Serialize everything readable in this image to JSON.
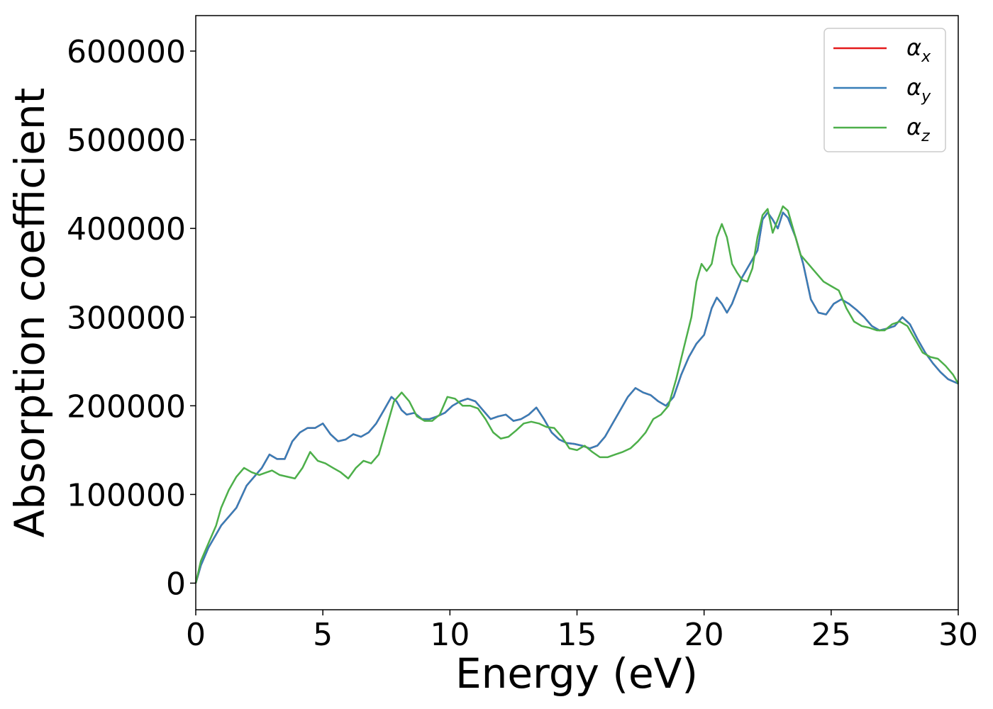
{
  "chart_data": {
    "type": "line",
    "title": "",
    "xlabel": "Energy (eV)",
    "ylabel": "Absorption coefficient",
    "xlim": [
      0,
      30
    ],
    "ylim": [
      -30000,
      640000
    ],
    "xticks": [
      0,
      5,
      10,
      15,
      20,
      25,
      30
    ],
    "yticks": [
      0,
      100000,
      200000,
      300000,
      400000,
      500000,
      600000
    ],
    "grid": false,
    "legend_position": "top-right",
    "series": [
      {
        "name": "α_x",
        "color": "#e41a1c",
        "x": [
          0,
          0.2,
          0.5,
          0.8,
          1.0,
          1.3,
          1.6,
          2.0,
          2.3,
          2.6,
          2.9,
          3.2,
          3.5,
          3.8,
          4.1,
          4.4,
          4.7,
          5.0,
          5.3,
          5.6,
          5.9,
          6.2,
          6.5,
          6.8,
          7.1,
          7.4,
          7.7,
          7.9,
          8.1,
          8.3,
          8.6,
          8.9,
          9.2,
          9.5,
          9.8,
          10.1,
          10.4,
          10.7,
          11.0,
          11.3,
          11.6,
          11.9,
          12.2,
          12.5,
          12.8,
          13.1,
          13.4,
          13.7,
          14.0,
          14.3,
          14.6,
          14.9,
          15.2,
          15.5,
          15.8,
          16.1,
          16.4,
          16.7,
          17.0,
          17.3,
          17.6,
          17.9,
          18.2,
          18.5,
          18.8,
          19.1,
          19.4,
          19.7,
          20.0,
          20.3,
          20.5,
          20.7,
          20.9,
          21.1,
          21.3,
          21.5,
          21.8,
          22.1,
          22.3,
          22.5,
          22.7,
          22.9,
          23.1,
          23.3,
          23.6,
          23.9,
          24.2,
          24.5,
          24.8,
          25.1,
          25.4,
          25.7,
          26.0,
          26.3,
          26.6,
          26.9,
          27.2,
          27.5,
          27.8,
          28.1,
          28.4,
          28.7,
          29.0,
          29.3,
          29.6,
          30.0
        ],
        "y": [
          0,
          20000,
          40000,
          55000,
          65000,
          75000,
          85000,
          110000,
          120000,
          130000,
          145000,
          140000,
          140000,
          160000,
          170000,
          175000,
          175000,
          180000,
          168000,
          160000,
          162000,
          168000,
          165000,
          170000,
          180000,
          195000,
          210000,
          205000,
          195000,
          190000,
          192000,
          185000,
          185000,
          188000,
          192000,
          200000,
          205000,
          208000,
          205000,
          195000,
          185000,
          188000,
          190000,
          183000,
          185000,
          190000,
          198000,
          185000,
          170000,
          162000,
          158000,
          157000,
          155000,
          152000,
          155000,
          165000,
          180000,
          195000,
          210000,
          220000,
          215000,
          212000,
          205000,
          200000,
          210000,
          235000,
          255000,
          270000,
          280000,
          310000,
          322000,
          315000,
          305000,
          315000,
          330000,
          345000,
          360000,
          375000,
          410000,
          418000,
          410000,
          400000,
          418000,
          412000,
          390000,
          360000,
          320000,
          305000,
          303000,
          315000,
          320000,
          315000,
          308000,
          300000,
          290000,
          285000,
          287000,
          290000,
          300000,
          292000,
          275000,
          260000,
          248000,
          238000,
          230000,
          225000
        ]
      },
      {
        "name": "α_y",
        "color": "#377eb8",
        "x": [
          0,
          0.2,
          0.5,
          0.8,
          1.0,
          1.3,
          1.6,
          2.0,
          2.3,
          2.6,
          2.9,
          3.2,
          3.5,
          3.8,
          4.1,
          4.4,
          4.7,
          5.0,
          5.3,
          5.6,
          5.9,
          6.2,
          6.5,
          6.8,
          7.1,
          7.4,
          7.7,
          7.9,
          8.1,
          8.3,
          8.6,
          8.9,
          9.2,
          9.5,
          9.8,
          10.1,
          10.4,
          10.7,
          11.0,
          11.3,
          11.6,
          11.9,
          12.2,
          12.5,
          12.8,
          13.1,
          13.4,
          13.7,
          14.0,
          14.3,
          14.6,
          14.9,
          15.2,
          15.5,
          15.8,
          16.1,
          16.4,
          16.7,
          17.0,
          17.3,
          17.6,
          17.9,
          18.2,
          18.5,
          18.8,
          19.1,
          19.4,
          19.7,
          20.0,
          20.3,
          20.5,
          20.7,
          20.9,
          21.1,
          21.3,
          21.5,
          21.8,
          22.1,
          22.3,
          22.5,
          22.7,
          22.9,
          23.1,
          23.3,
          23.6,
          23.9,
          24.2,
          24.5,
          24.8,
          25.1,
          25.4,
          25.7,
          26.0,
          26.3,
          26.6,
          26.9,
          27.2,
          27.5,
          27.8,
          28.1,
          28.4,
          28.7,
          29.0,
          29.3,
          29.6,
          30.0
        ],
        "y": [
          0,
          20000,
          40000,
          55000,
          65000,
          75000,
          85000,
          110000,
          120000,
          130000,
          145000,
          140000,
          140000,
          160000,
          170000,
          175000,
          175000,
          180000,
          168000,
          160000,
          162000,
          168000,
          165000,
          170000,
          180000,
          195000,
          210000,
          205000,
          195000,
          190000,
          192000,
          185000,
          185000,
          188000,
          192000,
          200000,
          205000,
          208000,
          205000,
          195000,
          185000,
          188000,
          190000,
          183000,
          185000,
          190000,
          198000,
          185000,
          170000,
          162000,
          158000,
          157000,
          155000,
          152000,
          155000,
          165000,
          180000,
          195000,
          210000,
          220000,
          215000,
          212000,
          205000,
          200000,
          210000,
          235000,
          255000,
          270000,
          280000,
          310000,
          322000,
          315000,
          305000,
          315000,
          330000,
          345000,
          360000,
          375000,
          410000,
          418000,
          410000,
          400000,
          418000,
          412000,
          390000,
          360000,
          320000,
          305000,
          303000,
          315000,
          320000,
          315000,
          308000,
          300000,
          290000,
          285000,
          287000,
          290000,
          300000,
          292000,
          275000,
          260000,
          248000,
          238000,
          230000,
          225000
        ]
      },
      {
        "name": "α_z",
        "color": "#4daf4a",
        "x": [
          0,
          0.2,
          0.5,
          0.8,
          1.0,
          1.3,
          1.6,
          1.9,
          2.2,
          2.5,
          2.8,
          3.0,
          3.3,
          3.6,
          3.9,
          4.2,
          4.5,
          4.8,
          5.1,
          5.4,
          5.7,
          6.0,
          6.3,
          6.6,
          6.9,
          7.2,
          7.5,
          7.8,
          8.1,
          8.4,
          8.7,
          9.0,
          9.3,
          9.6,
          9.9,
          10.2,
          10.5,
          10.8,
          11.1,
          11.4,
          11.7,
          12.0,
          12.3,
          12.6,
          12.9,
          13.2,
          13.5,
          13.8,
          14.1,
          14.4,
          14.7,
          15.0,
          15.3,
          15.6,
          15.9,
          16.2,
          16.5,
          16.8,
          17.1,
          17.4,
          17.7,
          18.0,
          18.3,
          18.6,
          18.9,
          19.2,
          19.5,
          19.7,
          19.9,
          20.1,
          20.3,
          20.5,
          20.7,
          20.9,
          21.1,
          21.3,
          21.5,
          21.7,
          21.9,
          22.1,
          22.3,
          22.5,
          22.7,
          22.9,
          23.1,
          23.3,
          23.5,
          23.8,
          24.1,
          24.4,
          24.7,
          25.0,
          25.3,
          25.6,
          25.9,
          26.2,
          26.5,
          26.8,
          27.1,
          27.4,
          27.7,
          28.0,
          28.3,
          28.6,
          28.9,
          29.2,
          29.5,
          29.8,
          30.0
        ],
        "y": [
          0,
          25000,
          45000,
          65000,
          85000,
          105000,
          120000,
          130000,
          125000,
          122000,
          125000,
          127000,
          122000,
          120000,
          118000,
          130000,
          148000,
          138000,
          135000,
          130000,
          125000,
          118000,
          130000,
          138000,
          135000,
          145000,
          175000,
          205000,
          215000,
          205000,
          188000,
          183000,
          183000,
          190000,
          210000,
          208000,
          200000,
          200000,
          197000,
          185000,
          170000,
          163000,
          165000,
          172000,
          180000,
          182000,
          180000,
          176000,
          175000,
          165000,
          152000,
          150000,
          155000,
          148000,
          142000,
          142000,
          145000,
          148000,
          152000,
          160000,
          170000,
          185000,
          190000,
          200000,
          230000,
          265000,
          300000,
          340000,
          360000,
          352000,
          360000,
          390000,
          405000,
          390000,
          360000,
          350000,
          342000,
          340000,
          355000,
          390000,
          415000,
          422000,
          395000,
          410000,
          425000,
          420000,
          400000,
          370000,
          360000,
          350000,
          340000,
          335000,
          330000,
          310000,
          295000,
          290000,
          288000,
          285000,
          285000,
          292000,
          295000,
          290000,
          275000,
          260000,
          255000,
          253000,
          245000,
          235000,
          225000
        ]
      }
    ]
  }
}
